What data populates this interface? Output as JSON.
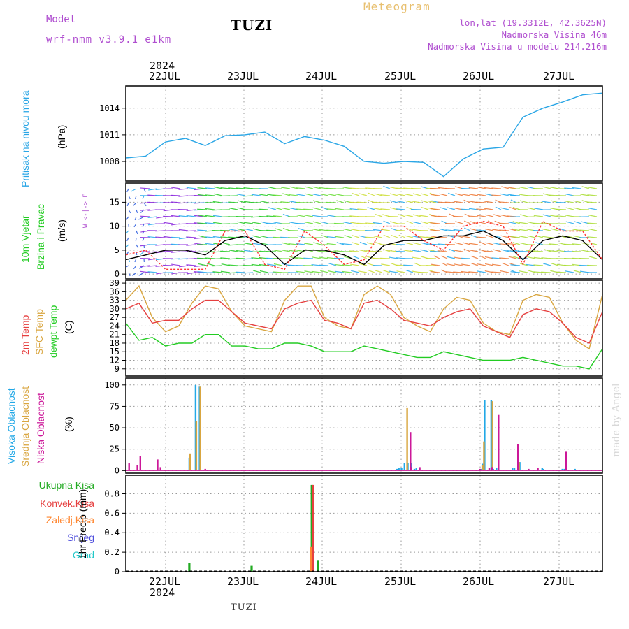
{
  "header": {
    "model_label": "Model",
    "model_name": "wrf-nmm_v3.9.1 e1km",
    "station": "TUZI",
    "product": "Meteogram",
    "lonlat": "lon,lat (19.3312E, 42.3625N)",
    "altitude": "Nadmorska Visina 46m",
    "model_altitude": "Nadmorska Visina u modelu 214.216m"
  },
  "year_label": "2024",
  "date_labels": [
    "22JUL",
    "23JUL",
    "24JUL",
    "25JUL",
    "26JUL",
    "27JUL"
  ],
  "footer_station": "TUZI",
  "watermark": "made by Angel",
  "colors": {
    "pressure": "#2aa6e6",
    "wind_speed": "#000000",
    "wind_gust": "#ff3333",
    "t2m": "#e64040",
    "tsfc": "#d9a640",
    "dewpt": "#22cc22",
    "cloud_high": "#22a8e6",
    "cloud_mid": "#d9a640",
    "cloud_low": "#cc1899",
    "precip_total": "#22aa22",
    "precip_conv": "#e64040",
    "precip_frozen": "#ff8833",
    "snow": "#5050dd",
    "graupel": "#22c8c8"
  },
  "panels": {
    "pressure": {
      "ylabel_1": "Pritisak na nivou mora",
      "ylabel_2": "(hPa)"
    },
    "wind": {
      "ylabel_1": "10m Vjetar",
      "ylabel_2": "Brzina i Pravac",
      "ylabel_3": "(m/s)",
      "compass": "W  <-|->  E"
    },
    "temp": {
      "ylabel_1": "2m Temp",
      "ylabel_2": "SFC Temp",
      "ylabel_3": "dewpt Temp",
      "ylabel_4": "(C)"
    },
    "cloud": {
      "ylabel_1": "Visoka Oblacnost",
      "ylabel_2": "Srednja Oblacnost",
      "ylabel_3": "Niska Oblacnost",
      "ylabel_4": "(%)"
    },
    "precip": {
      "legend": [
        "Ukupna Kisa",
        "Konvek.Kisa",
        "Zaledj.Kisa",
        "Snijeg",
        "Grad"
      ],
      "ylabel": "1hr Precip (mm)"
    }
  },
  "chart_data": [
    {
      "type": "line",
      "x": [
        0,
        6,
        12,
        18,
        24,
        30,
        36,
        42,
        48,
        54,
        60,
        66,
        72,
        78,
        84,
        90,
        96,
        102,
        108,
        114,
        120,
        126,
        132,
        138,
        144
      ],
      "series": [
        {
          "values": [
            1008.4,
            1008.6,
            1010.2,
            1010.6,
            1009.8,
            1010.9,
            1011.0,
            1011.3,
            1010.0,
            1010.8,
            1010.4,
            1009.7,
            1008.0,
            1007.8,
            1008.0,
            1007.9,
            1006.3,
            1008.3,
            1009.4,
            1009.6,
            1013.0,
            1014.0,
            1014.7,
            1015.5,
            1015.7
          ]
        }
      ],
      "yticks": [
        1008,
        1011,
        1014
      ],
      "ylim": [
        1005.8,
        1016.5
      ]
    },
    {
      "type": "line",
      "x": [
        0,
        6,
        12,
        18,
        24,
        30,
        36,
        42,
        48,
        54,
        60,
        66,
        72,
        78,
        84,
        90,
        96,
        102,
        108,
        114,
        120,
        126,
        132,
        138,
        144
      ],
      "series": [
        {
          "values": [
            3,
            4,
            5,
            5,
            4,
            7,
            8,
            6,
            2,
            5,
            5,
            4,
            2,
            6,
            7,
            7,
            8,
            8,
            9,
            7,
            3,
            7,
            8,
            7,
            3
          ]
        },
        {
          "values": [
            4,
            5,
            1,
            1,
            1,
            9,
            9,
            2,
            1,
            9,
            6,
            2,
            3,
            10,
            10,
            7,
            5,
            10,
            11,
            10,
            2,
            11,
            9,
            9,
            3
          ]
        }
      ],
      "yticks": [
        0,
        5,
        10,
        15
      ],
      "ylim": [
        -1,
        19
      ]
    },
    {
      "type": "line",
      "x": [
        0,
        4,
        8,
        12,
        16,
        20,
        24,
        28,
        32,
        36,
        40,
        44,
        48,
        52,
        56,
        60,
        64,
        68,
        72,
        76,
        80,
        84,
        88,
        92,
        96,
        100,
        104,
        108,
        112,
        116,
        120,
        124,
        128,
        132,
        136,
        140,
        144
      ],
      "series": [
        {
          "values": [
            30,
            32,
            25,
            26,
            26,
            30,
            33,
            33,
            29,
            25,
            24,
            23,
            30,
            32,
            33,
            26,
            25,
            23,
            32,
            33,
            30,
            26,
            25,
            24,
            27,
            29,
            30,
            24,
            22,
            20,
            28,
            30,
            29,
            25,
            20,
            18,
            29
          ]
        },
        {
          "values": [
            33,
            38,
            27,
            22,
            24,
            32,
            38,
            37,
            29,
            24,
            23,
            22,
            33,
            38,
            38,
            27,
            24,
            23,
            35,
            38,
            35,
            27,
            24,
            22,
            30,
            34,
            33,
            25,
            22,
            21,
            33,
            35,
            34,
            25,
            19,
            16,
            35
          ]
        },
        {
          "values": [
            25,
            19,
            20,
            17,
            18,
            18,
            21,
            21,
            17,
            17,
            16,
            16,
            18,
            18,
            17,
            15,
            15,
            15,
            17,
            16,
            15,
            14,
            13,
            13,
            15,
            14,
            13,
            12,
            12,
            12,
            13,
            12,
            11,
            10,
            10,
            9,
            16
          ]
        }
      ],
      "yticks": [
        9,
        12,
        15,
        18,
        21,
        24,
        27,
        30,
        33,
        36,
        39
      ],
      "ylim": [
        6.5,
        40
      ]
    },
    {
      "type": "bar",
      "series": [
        {
          "x": [
            19.2,
            19.6,
            21.1,
            22.3,
            81.9,
            82.5,
            83.3,
            84.2,
            85.2,
            86.1,
            87.2,
            87.8,
            107.5,
            107.9,
            108.4,
            110.4,
            111.0,
            112.0,
            116.8,
            117.4,
            118.6,
            119.0,
            125.8,
            126.2,
            131.9,
            132.5,
            135.7
          ],
          "values": [
            15,
            5,
            100,
            98,
            2,
            3,
            3,
            9,
            9,
            9,
            2,
            3,
            2,
            8,
            82,
            82,
            2,
            3,
            3,
            3,
            10,
            10,
            3,
            2,
            2,
            2,
            2
          ]
        },
        {
          "x": [
            19.4,
            21.3,
            22.5,
            85.0,
            107.7,
            108.2,
            110.8,
            118.8
          ],
          "values": [
            20,
            58,
            98,
            73,
            6,
            34,
            81,
            10
          ]
        },
        {
          "x": [
            1.0,
            3.5,
            4.4,
            9.6,
            10.5,
            24.0,
            86.0,
            86.2,
            88.8,
            107.0,
            109.8,
            110.6,
            112.6,
            118.5,
            121.7,
            124.5,
            133.0
          ],
          "values": [
            9,
            6,
            17,
            13,
            4,
            2,
            45,
            4,
            4,
            2,
            3,
            4,
            65,
            31,
            2,
            3,
            22
          ]
        }
      ],
      "yticks": [
        0,
        25,
        50,
        75,
        100
      ],
      "ylim": [
        -3,
        108
      ]
    },
    {
      "type": "bar",
      "series": [
        {
          "x": [
            19.2,
            38.0,
            56.2,
            58.0
          ],
          "values": [
            0.09,
            0.06,
            0.89,
            0.12
          ]
        },
        {
          "x": [
            56.6
          ],
          "values": [
            0.89
          ]
        },
        {
          "x": [
            55.9
          ],
          "values": [
            0.26
          ]
        }
      ],
      "yticks": [
        0,
        0.2,
        0.4,
        0.6,
        0.8
      ],
      "ylim": [
        0,
        0.99
      ]
    }
  ]
}
